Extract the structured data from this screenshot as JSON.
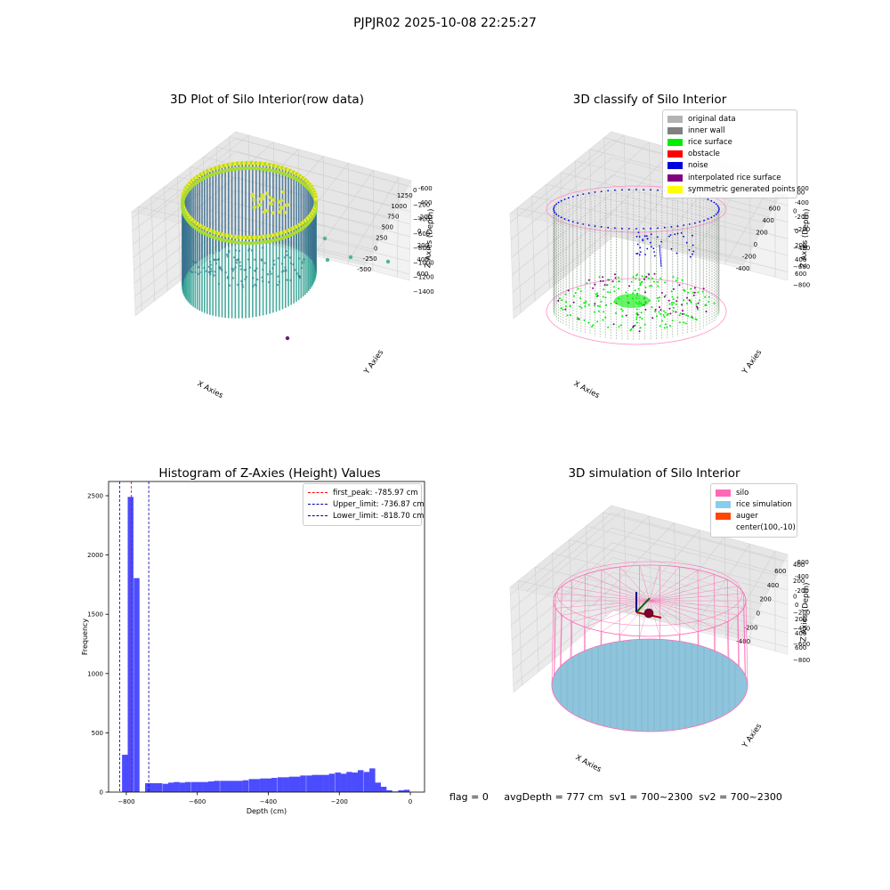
{
  "figure": {
    "suptitle": "PJPJR02 2025-10-08 22:25:27",
    "bottom_text": {
      "flag": "flag = 0",
      "avg_depth": "avgDepth = 777 cm",
      "sv1": "sv1 = 700~2300",
      "sv2": "sv2 = 700~2300"
    }
  },
  "chart_data": [
    {
      "type": "scatter",
      "dimension": "3d",
      "title": "3D Plot of Silo Interior(row data)",
      "xlabel": "X Axies",
      "ylabel": "Y Axies",
      "zlabel": "Z Axies (Depth)",
      "xticks": [
        "-500",
        "-250",
        "0",
        "250",
        "500",
        "750",
        "1000",
        "1250"
      ],
      "yticks": [
        "-600",
        "-400",
        "-200",
        "0",
        "200",
        "400",
        "600"
      ],
      "zticks": [
        "0",
        "−200",
        "−400",
        "−600",
        "−800",
        "−1000",
        "−1200",
        "−1400"
      ],
      "xlim": [
        -600,
        1300
      ],
      "ylim": [
        -650,
        650
      ],
      "zlim": [
        -1450,
        50
      ],
      "colormap": "viridis",
      "structure": {
        "cylinder_center": [
          150,
          0
        ],
        "cylinder_radius": 550,
        "z_range": [
          -1000,
          -100
        ]
      },
      "outliers": [
        {
          "x": 900,
          "y": 200,
          "z": -600
        },
        {
          "x": 1000,
          "y": 100,
          "z": -800
        },
        {
          "x": 1200,
          "y": 0,
          "z": -900
        },
        {
          "x": 1250,
          "y": -100,
          "z": -1000
        },
        {
          "x": 850,
          "y": 150,
          "z": -900
        },
        {
          "x": 750,
          "y": 100,
          "z": -950
        },
        {
          "x": 600,
          "y": -300,
          "z": -1400
        }
      ],
      "grid": true
    },
    {
      "type": "scatter",
      "dimension": "3d",
      "title": "3D classify of Silo Interior",
      "xlabel": "X Axies",
      "ylabel": "Y Axies",
      "zlabel": "Z Axies (Depth)",
      "xticks": [
        "-400",
        "-200",
        "0",
        "200",
        "400",
        "600",
        "800"
      ],
      "yticks": [
        "-600",
        "-400",
        "-200",
        "0",
        "200",
        "400",
        "600"
      ],
      "zticks": [
        "200",
        "0",
        "−200",
        "−400",
        "−600",
        "−800"
      ],
      "legend_location": "top-right",
      "legend": [
        {
          "label": "original data",
          "color": "#b3b3b3"
        },
        {
          "label": "inner wall",
          "color": "#808080"
        },
        {
          "label": "rice surface",
          "color": "#00ee00"
        },
        {
          "label": "obstacle",
          "color": "#ff0000"
        },
        {
          "label": "noise",
          "color": "#0000dd"
        },
        {
          "label": "interpolated rice surface",
          "color": "#800080"
        },
        {
          "label": "symmetric generated points",
          "color": "#ffff00"
        }
      ],
      "grid": true
    },
    {
      "type": "bar",
      "title": "Histogram of Z-Axies (Height) Values",
      "xlabel": "Depth (cm)",
      "ylabel": "Frequency",
      "xlim": [
        -850,
        40
      ],
      "ylim": [
        0,
        2620
      ],
      "xticks": [
        -800,
        -600,
        -400,
        -200,
        0
      ],
      "yticks": [
        0,
        500,
        1000,
        1500,
        2000,
        2500
      ],
      "bar_color": "#0000ff",
      "bin_width": 16.2,
      "bins": [
        {
          "x": -804,
          "value": 315
        },
        {
          "x": -788,
          "value": 2490
        },
        {
          "x": -771,
          "value": 1805
        },
        {
          "x": -755,
          "value": 0
        },
        {
          "x": -739,
          "value": 75
        },
        {
          "x": -723,
          "value": 75
        },
        {
          "x": -707,
          "value": 75
        },
        {
          "x": -690,
          "value": 70
        },
        {
          "x": -674,
          "value": 80
        },
        {
          "x": -658,
          "value": 85
        },
        {
          "x": -642,
          "value": 80
        },
        {
          "x": -626,
          "value": 85
        },
        {
          "x": -609,
          "value": 85
        },
        {
          "x": -593,
          "value": 85
        },
        {
          "x": -577,
          "value": 85
        },
        {
          "x": -561,
          "value": 90
        },
        {
          "x": -545,
          "value": 95
        },
        {
          "x": -528,
          "value": 95
        },
        {
          "x": -512,
          "value": 95
        },
        {
          "x": -496,
          "value": 95
        },
        {
          "x": -480,
          "value": 95
        },
        {
          "x": -464,
          "value": 100
        },
        {
          "x": -447,
          "value": 110
        },
        {
          "x": -431,
          "value": 110
        },
        {
          "x": -415,
          "value": 115
        },
        {
          "x": -399,
          "value": 115
        },
        {
          "x": -383,
          "value": 120
        },
        {
          "x": -366,
          "value": 125
        },
        {
          "x": -350,
          "value": 125
        },
        {
          "x": -334,
          "value": 130
        },
        {
          "x": -318,
          "value": 130
        },
        {
          "x": -302,
          "value": 140
        },
        {
          "x": -285,
          "value": 140
        },
        {
          "x": -269,
          "value": 145
        },
        {
          "x": -253,
          "value": 145
        },
        {
          "x": -237,
          "value": 145
        },
        {
          "x": -221,
          "value": 155
        },
        {
          "x": -204,
          "value": 165
        },
        {
          "x": -188,
          "value": 155
        },
        {
          "x": -172,
          "value": 170
        },
        {
          "x": -156,
          "value": 165
        },
        {
          "x": -140,
          "value": 185
        },
        {
          "x": -123,
          "value": 170
        },
        {
          "x": -107,
          "value": 200
        },
        {
          "x": -91,
          "value": 80
        },
        {
          "x": -75,
          "value": 45
        },
        {
          "x": -59,
          "value": 15
        },
        {
          "x": -42,
          "value": 5
        },
        {
          "x": -26,
          "value": 15
        },
        {
          "x": -10,
          "value": 20
        }
      ],
      "vlines": [
        {
          "label": "first_peak: -785.97 cm",
          "x": -785.97,
          "color": "#ff0000"
        },
        {
          "label": "Upper_limit: -736.87 cm",
          "x": -736.87,
          "color": "#0000aa"
        },
        {
          "label": "Lower_limit: -818.70 cm",
          "x": -818.7,
          "color": "#0000aa"
        }
      ],
      "legend_location": "top-right",
      "grid": false
    },
    {
      "type": "scatter",
      "dimension": "3d",
      "title": "3D simulation of Silo Interior",
      "xlabel": "X Axies",
      "ylabel": "Y Axies",
      "zlabel": "Z Axies (Depth)",
      "xticks": [
        "-400",
        "-200",
        "0",
        "200",
        "400",
        "600"
      ],
      "yticks": [
        "-600",
        "-400",
        "-200",
        "0",
        "200",
        "400",
        "600"
      ],
      "zticks": [
        "400",
        "200",
        "0",
        "−200",
        "−400",
        "−600",
        "−800"
      ],
      "legend_location": "top-right",
      "legend": [
        {
          "label": "silo",
          "color": "#ff69b4"
        },
        {
          "label": "rice simulation",
          "color": "#87ceeb"
        },
        {
          "label": "auger",
          "color": "#ff4500"
        },
        {
          "label": "center(100,-10)",
          "color": ""
        }
      ],
      "grid": true
    }
  ]
}
